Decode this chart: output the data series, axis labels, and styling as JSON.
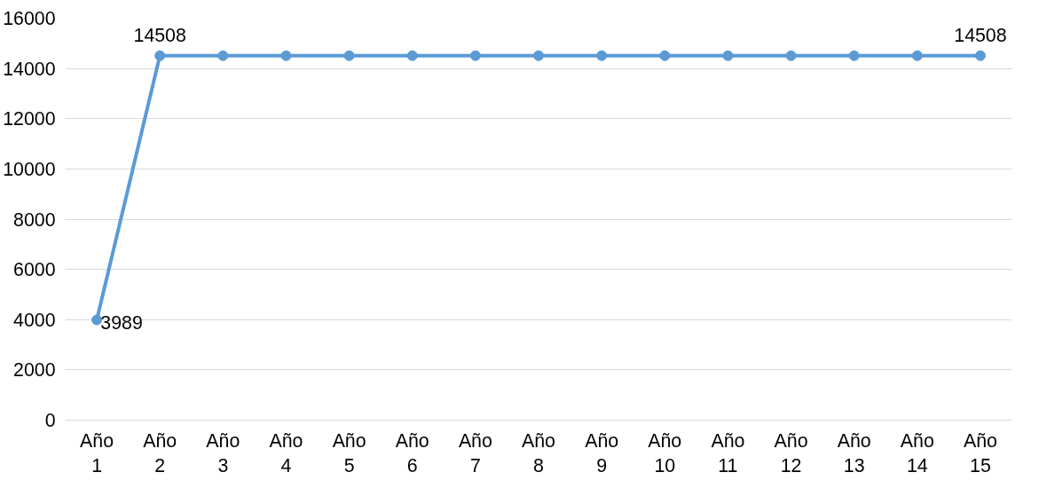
{
  "chart_data": {
    "type": "line",
    "categories": [
      "Año 1",
      "Año 2",
      "Año 3",
      "Año 4",
      "Año 5",
      "Año 6",
      "Año 7",
      "Año 8",
      "Año 9",
      "Año 10",
      "Año 11",
      "Año 12",
      "Año 13",
      "Año 14",
      "Año 15"
    ],
    "values": [
      3989,
      14508,
      14508,
      14508,
      14508,
      14508,
      14508,
      14508,
      14508,
      14508,
      14508,
      14508,
      14508,
      14508,
      14508
    ],
    "value_labels": [
      "3989",
      "14508",
      null,
      null,
      null,
      null,
      null,
      null,
      null,
      null,
      null,
      null,
      null,
      null,
      "14508"
    ],
    "color": "#5b9bd5",
    "marker": "circle",
    "line_style": "solid",
    "grid": "y",
    "ylim": [
      0,
      16000
    ],
    "yticks": [
      0,
      2000,
      4000,
      6000,
      8000,
      10000,
      12000,
      14000,
      16000
    ]
  }
}
